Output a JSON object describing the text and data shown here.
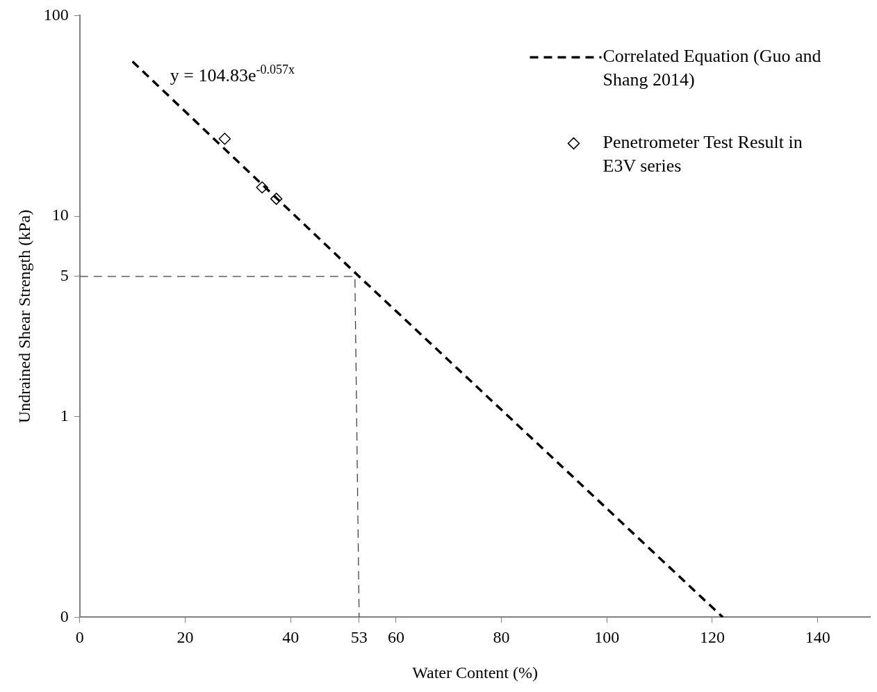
{
  "chart_data": {
    "type": "scatter",
    "xlabel": "Water Content (%)",
    "ylabel": "Undrained Shear Strength (kPa)",
    "xlim": [
      0,
      150
    ],
    "xticks": [
      0,
      20,
      40,
      53,
      60,
      80,
      100,
      120,
      140
    ],
    "ylim": [
      0.1,
      100
    ],
    "yticks": [
      {
        "value": 0.1,
        "label": "0"
      },
      1,
      5,
      10,
      100
    ],
    "log": "y",
    "grid": false,
    "legend": "top right",
    "annotations": [
      "y = 104.83e$^{-0.057x}$"
    ],
    "series": [
      {
        "type": "line",
        "name": "Correlated Equation (Guo and Shang 2014)",
        "color": "#000000",
        "x": [
          10,
          53,
          122
        ],
        "values": [
          59,
          5,
          0.1
        ],
        "marker": "none",
        "line_style": "dashed"
      },
      {
        "type": "scatter",
        "name": "Penetrometer Test Result in E3V series",
        "color": "#000000",
        "x": [
          27.5,
          34.6,
          37.3
        ],
        "values": [
          24.3,
          13.9,
          12.2
        ],
        "marker": "diamond"
      },
      {
        "type": "line",
        "color": "#404040",
        "x": [
          0,
          52.2,
          53
        ],
        "values": [
          5,
          5,
          0.1
        ],
        "marker": "none",
        "line_style": "dashed"
      }
    ]
  }
}
